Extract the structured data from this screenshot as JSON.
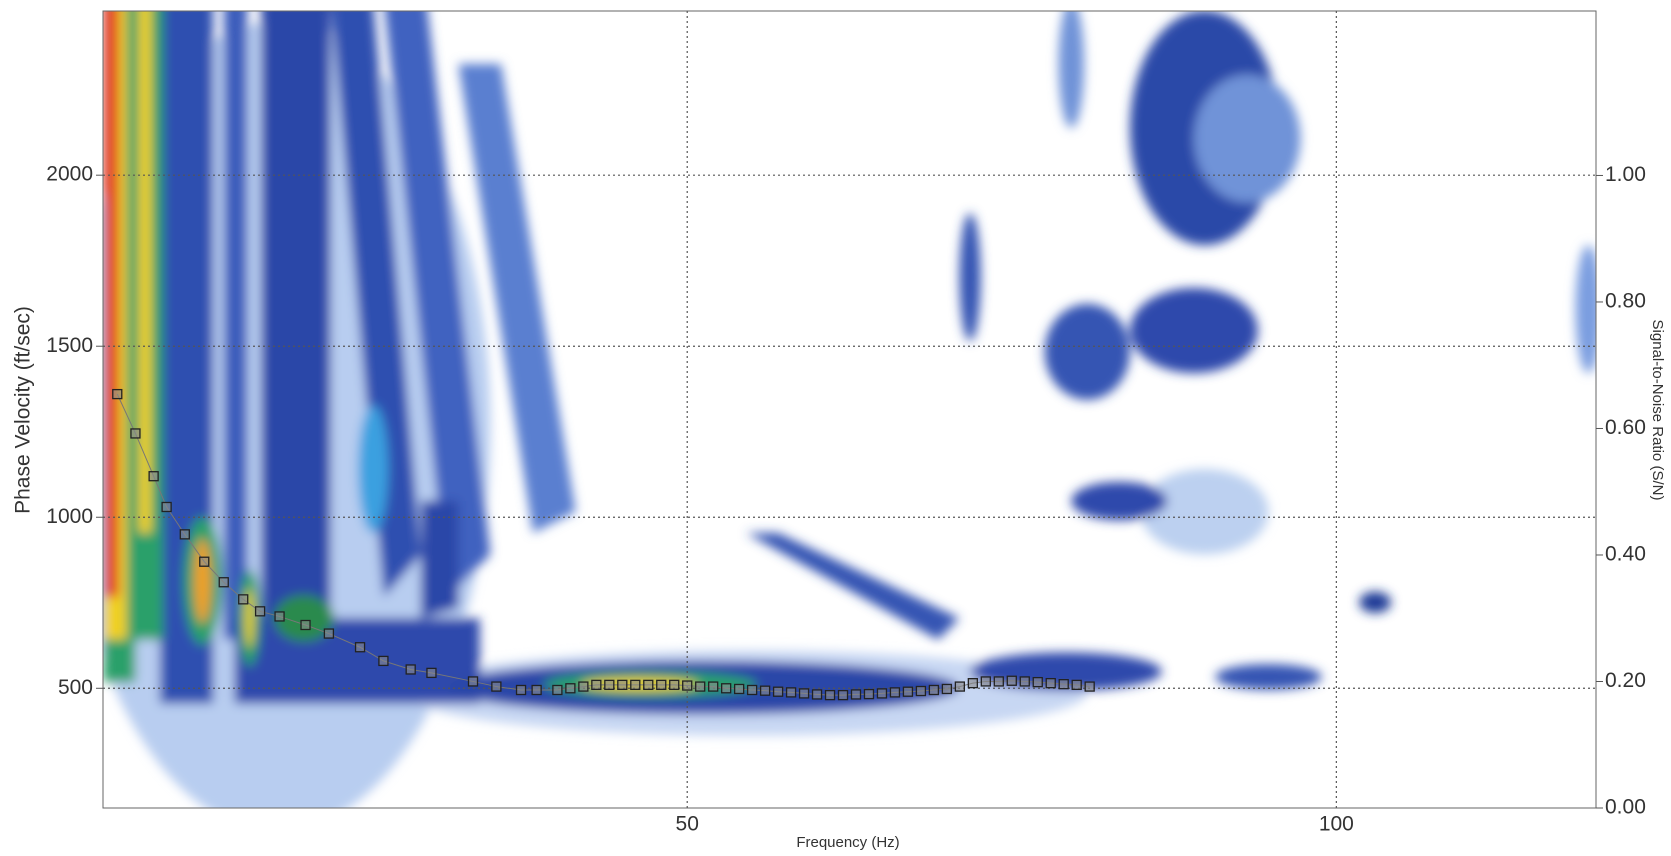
{
  "chart_data": {
    "type": "scatter",
    "xlabel": "Frequency (Hz)",
    "ylabel": "Phase Velocity (ft/sec)",
    "y2label": "Signal-to-Noise Ratio (S/N)",
    "x": [
      6.1,
      7.5,
      8.9,
      9.9,
      11.3,
      12.8,
      14.3,
      15.8,
      17.1,
      18.6,
      20.6,
      22.4,
      24.8,
      26.6,
      28.7,
      30.3,
      33.5,
      35.3,
      37.2,
      38.4,
      40,
      41,
      42,
      43,
      44,
      45,
      46,
      47,
      48,
      49,
      50,
      51,
      52,
      53,
      54,
      55,
      56,
      57,
      58,
      59,
      60,
      61,
      62,
      63,
      64,
      65,
      66,
      67,
      68,
      69,
      70,
      71,
      72,
      73,
      74,
      75,
      76,
      77,
      78,
      79,
      80,
      81
    ],
    "values": [
      1360,
      1245,
      1120,
      1030,
      950,
      870,
      810,
      760,
      725,
      710,
      685,
      660,
      620,
      580,
      555,
      545,
      520,
      505,
      495,
      495,
      495,
      500,
      505,
      510,
      510,
      510,
      510,
      510,
      510,
      510,
      508,
      505,
      505,
      500,
      498,
      495,
      493,
      490,
      488,
      485,
      482,
      480,
      480,
      482,
      483,
      485,
      488,
      490,
      492,
      495,
      498,
      505,
      515,
      520,
      520,
      522,
      520,
      518,
      515,
      512,
      510,
      505
    ],
    "color": "#8c8c8c",
    "xlim": [
      5,
      120
    ],
    "xticks": [
      50,
      100
    ],
    "ylim": [
      150,
      2480
    ],
    "yticks": [
      500,
      1000,
      1500,
      2000
    ],
    "y2lim": [
      0,
      1.26
    ],
    "y2ticks": [
      {
        "value": 0,
        "label": "0.00"
      },
      {
        "value": 0.2,
        "label": "0.20"
      },
      {
        "value": 0.4,
        "label": "0.40"
      },
      {
        "value": 0.6,
        "label": "0.60"
      },
      {
        "value": 0.8,
        "label": "0.80"
      },
      {
        "value": 1,
        "label": "1.00"
      }
    ],
    "grid": true
  }
}
